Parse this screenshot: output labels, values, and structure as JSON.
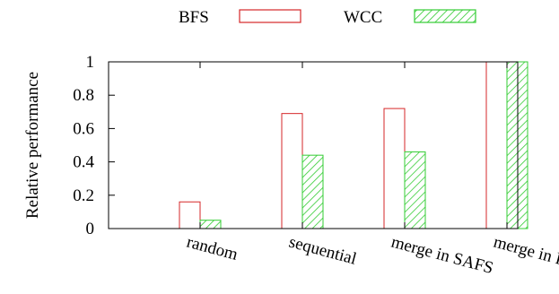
{
  "chart_data": {
    "type": "bar",
    "categories": [
      "random",
      "sequential",
      "merge in SAFS",
      "merge in FG"
    ],
    "series": [
      {
        "name": "BFS",
        "values": [
          0.16,
          0.69,
          0.72,
          1.0
        ],
        "color": "#d62728",
        "fill": "none"
      },
      {
        "name": "WCC",
        "values": [
          0.05,
          0.44,
          0.46,
          1.0
        ],
        "color": "#2ca02c",
        "fill": "hatched-green"
      }
    ],
    "title": "",
    "xlabel": "",
    "ylabel": "Relative performance",
    "ylim": [
      0,
      1
    ],
    "yticks": [
      "0",
      "0.2",
      "0.4",
      "0.6",
      "0.8",
      "1"
    ],
    "grid": false,
    "legend": "top"
  }
}
